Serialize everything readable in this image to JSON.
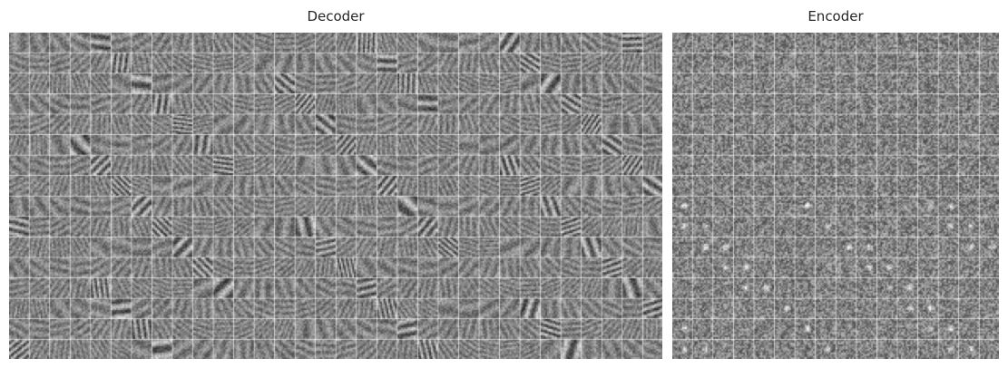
{
  "panels": {
    "decoder": {
      "title": "Decoder",
      "grid_rows": 16,
      "grid_cols": 32
    },
    "encoder": {
      "title": "Encoder",
      "grid_rows": 16,
      "grid_cols": 16
    }
  }
}
